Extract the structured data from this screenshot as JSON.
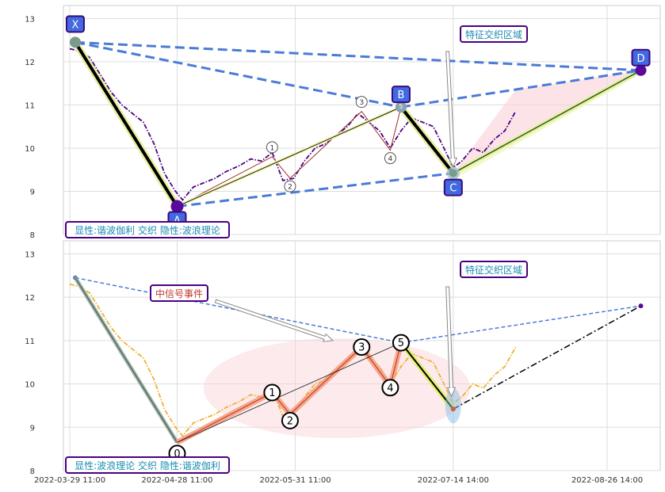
{
  "chart_data": [
    {
      "type": "line",
      "panel": "top",
      "ylim": [
        8,
        13.3
      ],
      "yticks": [
        "8",
        "9",
        "10",
        "11",
        "12",
        "13"
      ],
      "grid": true,
      "series": [
        {
          "style": "dash-dot",
          "color": "#4b0082",
          "points": [
            [
              "2022-03-29 11:00",
              12.3
            ],
            [
              "2022-04-01",
              12.25
            ],
            [
              "2022-04-04",
              12.1
            ],
            [
              "2022-04-07",
              11.7
            ],
            [
              "2022-04-10",
              11.3
            ],
            [
              "2022-04-13",
              11.0
            ],
            [
              "2022-04-16",
              10.8
            ],
            [
              "2022-04-19",
              10.6
            ],
            [
              "2022-04-22",
              10.1
            ],
            [
              "2022-04-25",
              9.4
            ],
            [
              "2022-04-28",
              9.0
            ],
            [
              "2022-04-30",
              8.8
            ],
            [
              "2022-05-03",
              9.1
            ],
            [
              "2022-05-06",
              9.2
            ],
            [
              "2022-05-09",
              9.3
            ],
            [
              "2022-05-12",
              9.45
            ],
            [
              "2022-05-16",
              9.6
            ],
            [
              "2022-05-19",
              9.75
            ],
            [
              "2022-05-22",
              9.7
            ],
            [
              "2022-05-25",
              9.9
            ],
            [
              "2022-05-28",
              9.25
            ],
            [
              "2022-05-31",
              9.3
            ],
            [
              "2022-06-03",
              9.7
            ],
            [
              "2022-06-06",
              10.0
            ],
            [
              "2022-06-09",
              10.1
            ],
            [
              "2022-06-12",
              10.3
            ],
            [
              "2022-06-15",
              10.5
            ],
            [
              "2022-06-18",
              10.8
            ],
            [
              "2022-06-21",
              10.6
            ],
            [
              "2022-06-24",
              10.4
            ],
            [
              "2022-06-27",
              10.0
            ],
            [
              "2022-06-30",
              10.4
            ],
            [
              "2022-07-03",
              10.7
            ],
            [
              "2022-07-06",
              10.6
            ],
            [
              "2022-07-09",
              10.5
            ],
            [
              "2022-07-12",
              10.0
            ],
            [
              "2022-07-14 14:00",
              9.55
            ],
            [
              "2022-07-17",
              9.7
            ],
            [
              "2022-07-20",
              10.0
            ],
            [
              "2022-07-23",
              9.9
            ],
            [
              "2022-07-26",
              10.2
            ],
            [
              "2022-07-29",
              10.4
            ],
            [
              "2022-08-01",
              10.85
            ]
          ]
        }
      ],
      "points": {
        "X": [
          "2022-03-31",
          12.45
        ],
        "A": [
          "2022-04-28 11:00",
          8.65
        ],
        "B": [
          "2022-06-30",
          10.95
        ],
        "C": [
          "2022-07-14 14:00",
          9.42
        ],
        "D": [
          "2022-09-05",
          11.8
        ]
      },
      "wave_points": [
        [
          "1",
          "2022-05-25",
          9.8
        ],
        [
          "2",
          "2022-05-30",
          9.3
        ],
        [
          "3",
          "2022-06-19",
          10.85
        ],
        [
          "4",
          "2022-06-27",
          9.95
        ],
        [
          "5",
          "2022-06-30",
          10.95
        ]
      ],
      "annotations": [
        "特征交织区域",
        "显性:谐波伽利 交织 隐性:波浪理论"
      ]
    },
    {
      "type": "line",
      "panel": "bottom",
      "ylim": [
        8,
        13.3
      ],
      "yticks": [
        "8",
        "9",
        "10",
        "11",
        "12",
        "13"
      ],
      "xticks": [
        "2022-03-29 11:00",
        "2022-04-28 11:00",
        "2022-05-31 11:00",
        "2022-07-14 14:00",
        "2022-08-26 14:00"
      ],
      "grid": true,
      "series": [
        {
          "style": "dash-dot",
          "color": "#f0b030",
          "points": [
            [
              "2022-03-29 11:00",
              12.3
            ],
            [
              "2022-04-01",
              12.25
            ],
            [
              "2022-04-04",
              12.1
            ],
            [
              "2022-04-07",
              11.7
            ],
            [
              "2022-04-10",
              11.3
            ],
            [
              "2022-04-13",
              11.0
            ],
            [
              "2022-04-16",
              10.8
            ],
            [
              "2022-04-19",
              10.6
            ],
            [
              "2022-04-22",
              10.1
            ],
            [
              "2022-04-25",
              9.4
            ],
            [
              "2022-04-28",
              9.0
            ],
            [
              "2022-04-30",
              8.8
            ],
            [
              "2022-05-03",
              9.1
            ],
            [
              "2022-05-06",
              9.2
            ],
            [
              "2022-05-09",
              9.3
            ],
            [
              "2022-05-12",
              9.45
            ],
            [
              "2022-05-16",
              9.6
            ],
            [
              "2022-05-19",
              9.75
            ],
            [
              "2022-05-22",
              9.7
            ],
            [
              "2022-05-25",
              9.9
            ],
            [
              "2022-05-28",
              9.25
            ],
            [
              "2022-05-31",
              9.3
            ],
            [
              "2022-06-03",
              9.7
            ],
            [
              "2022-06-06",
              10.0
            ],
            [
              "2022-06-09",
              10.1
            ],
            [
              "2022-06-12",
              10.3
            ],
            [
              "2022-06-15",
              10.5
            ],
            [
              "2022-06-18",
              10.8
            ],
            [
              "2022-06-21",
              10.6
            ],
            [
              "2022-06-24",
              10.4
            ],
            [
              "2022-06-27",
              10.0
            ],
            [
              "2022-06-30",
              10.4
            ],
            [
              "2022-07-03",
              10.7
            ],
            [
              "2022-07-06",
              10.6
            ],
            [
              "2022-07-09",
              10.5
            ],
            [
              "2022-07-12",
              10.0
            ],
            [
              "2022-07-14 14:00",
              9.55
            ],
            [
              "2022-07-17",
              9.7
            ],
            [
              "2022-07-20",
              10.0
            ],
            [
              "2022-07-23",
              9.9
            ],
            [
              "2022-07-26",
              10.2
            ],
            [
              "2022-07-29",
              10.4
            ],
            [
              "2022-08-01",
              10.85
            ]
          ]
        }
      ],
      "wave_points": [
        [
          "0",
          "2022-04-28 11:00",
          8.65
        ],
        [
          "1",
          "2022-05-25",
          9.8
        ],
        [
          "2",
          "2022-05-30",
          9.3
        ],
        [
          "3",
          "2022-06-19",
          10.85
        ],
        [
          "4",
          "2022-06-27",
          9.95
        ],
        [
          "5",
          "2022-06-30",
          10.95
        ]
      ],
      "harmonic_points": {
        "X": [
          "2022-03-31",
          12.45
        ],
        "A": [
          "2022-04-28 11:00",
          8.65
        ],
        "B": [
          "2022-06-30",
          10.95
        ],
        "C": [
          "2022-07-14 14:00",
          9.42
        ],
        "D": [
          "2022-09-05",
          11.8
        ]
      },
      "annotations": [
        "特征交织区域",
        "中信号事件",
        "显性:波浪理论 交织 隐性:谐波伽利"
      ]
    }
  ],
  "colors": {
    "primary_line": "#4b0082",
    "secondary_line": "#f0b030",
    "harmonic_dash": "#4a7bd6",
    "label_fill": "#4169e1",
    "label_border": "#3a0a7a",
    "annotation_text": "#1a8bb4",
    "signal_text": "#c0392b",
    "pink_zone": "#f8d0d8"
  }
}
